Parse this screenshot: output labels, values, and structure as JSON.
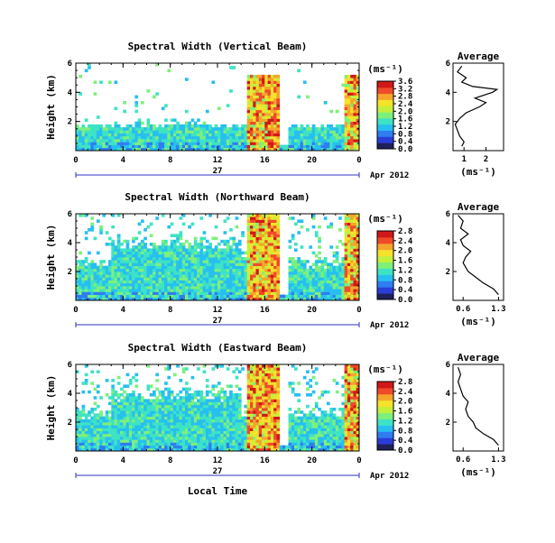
{
  "colors": {
    "colormap": [
      "#20205a",
      "#2a3dd8",
      "#2f7df0",
      "#27bff0",
      "#3ee3c4",
      "#7ef07a",
      "#c4f03c",
      "#f5e22a",
      "#f5a52a",
      "#f04a2a",
      "#d01818"
    ],
    "axis": "#000000",
    "date_axis": "#3030c0"
  },
  "chart_data": [
    {
      "type": "heatmap",
      "title": "Spectral Width (Vertical Beam)",
      "ylabel": "Height (km)",
      "ylim": [
        0,
        6
      ],
      "yticks": [
        "2",
        "4",
        "6"
      ],
      "xlim": [
        0,
        24
      ],
      "xticks": [
        "0",
        "4",
        "8",
        "12",
        "16",
        "20",
        "0"
      ],
      "colorbar": {
        "unit": "(ms⁻¹)",
        "min": 0,
        "max": 3.6,
        "ticks": [
          "3.6",
          "3.2",
          "2.8",
          "2.4",
          "2.0",
          "1.6",
          "1.2",
          "0.8",
          "0.4",
          "0.0"
        ]
      },
      "profile": {
        "title": "Average",
        "xlabel": "(ms⁻¹)",
        "xticks": [
          "1",
          "2"
        ],
        "xlim": [
          0.5,
          2.8
        ],
        "yticks": [
          "2",
          "4",
          "6"
        ],
        "points": [
          [
            0.9,
            0.3
          ],
          [
            1.0,
            0.6
          ],
          [
            0.8,
            1.0
          ],
          [
            0.7,
            1.4
          ],
          [
            0.6,
            1.8
          ],
          [
            0.8,
            2.2
          ],
          [
            1.1,
            2.6
          ],
          [
            1.7,
            3.0
          ],
          [
            2.0,
            3.3
          ],
          [
            1.5,
            3.6
          ],
          [
            2.3,
            4.0
          ],
          [
            2.5,
            4.2
          ],
          [
            1.4,
            4.4
          ],
          [
            0.9,
            4.7
          ],
          [
            1.1,
            5.0
          ],
          [
            0.7,
            5.4
          ],
          [
            0.9,
            5.8
          ]
        ]
      }
    },
    {
      "type": "heatmap",
      "title": "Spectral Width (Northward Beam)",
      "ylabel": "Height (km)",
      "ylim": [
        0,
        6
      ],
      "yticks": [
        "2",
        "4",
        "6"
      ],
      "xlim": [
        0,
        24
      ],
      "xticks": [
        "0",
        "4",
        "8",
        "12",
        "16",
        "20",
        "0"
      ],
      "colorbar": {
        "unit": "(ms⁻¹)",
        "min": 0,
        "max": 2.8,
        "ticks": [
          "2.8",
          "2.4",
          "2.0",
          "1.6",
          "1.2",
          "0.8",
          "0.4",
          "0.0"
        ]
      },
      "profile": {
        "title": "Average",
        "xlabel": "(ms⁻¹)",
        "xticks": [
          "0.6",
          "1.3"
        ],
        "xlim": [
          0.4,
          1.4
        ],
        "yticks": [
          "2",
          "4",
          "6"
        ],
        "points": [
          [
            1.3,
            0.4
          ],
          [
            1.2,
            0.8
          ],
          [
            1.0,
            1.2
          ],
          [
            0.85,
            1.6
          ],
          [
            0.7,
            2.0
          ],
          [
            0.6,
            2.6
          ],
          [
            0.65,
            3.0
          ],
          [
            0.75,
            3.4
          ],
          [
            0.6,
            3.8
          ],
          [
            0.55,
            4.2
          ],
          [
            0.7,
            4.6
          ],
          [
            0.55,
            5.0
          ],
          [
            0.6,
            5.5
          ],
          [
            0.5,
            5.9
          ]
        ]
      }
    },
    {
      "type": "heatmap",
      "title": "Spectral Width (Eastward Beam)",
      "ylabel": "Height (km)",
      "ylim": [
        0,
        6
      ],
      "yticks": [
        "2",
        "4",
        "6"
      ],
      "xlim": [
        0,
        24
      ],
      "xticks": [
        "0",
        "4",
        "8",
        "12",
        "16",
        "20",
        "0"
      ],
      "colorbar": {
        "unit": "(ms⁻¹)",
        "min": 0,
        "max": 2.8,
        "ticks": [
          "2.8",
          "2.4",
          "2.0",
          "1.6",
          "1.2",
          "0.8",
          "0.4",
          "0.0"
        ]
      },
      "profile": {
        "title": "Average",
        "xlabel": "(ms⁻¹)",
        "xticks": [
          "0.6",
          "1.3"
        ],
        "xlim": [
          0.4,
          1.4
        ],
        "yticks": [
          "2",
          "4",
          "6"
        ],
        "points": [
          [
            1.3,
            0.4
          ],
          [
            1.2,
            0.8
          ],
          [
            1.0,
            1.2
          ],
          [
            0.85,
            1.6
          ],
          [
            0.8,
            2.0
          ],
          [
            0.7,
            2.4
          ],
          [
            0.65,
            2.9
          ],
          [
            0.7,
            3.4
          ],
          [
            0.6,
            3.8
          ],
          [
            0.55,
            4.3
          ],
          [
            0.5,
            4.8
          ],
          [
            0.55,
            5.3
          ],
          [
            0.5,
            5.8
          ]
        ]
      }
    }
  ],
  "date_axis": {
    "day": "27",
    "month_year": "Apr 2012"
  },
  "xlabel": "Local Time"
}
